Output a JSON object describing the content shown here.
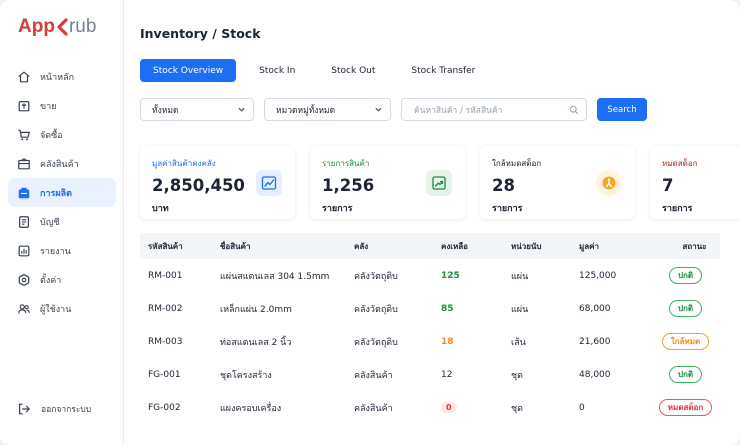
{
  "brand": {
    "part1": "App",
    "part2": "rub"
  },
  "sidebar": {
    "items": [
      {
        "label": "หน้าหลัก",
        "icon": "home-icon"
      },
      {
        "label": "ขาย",
        "icon": "sale-icon"
      },
      {
        "label": "จัดซื้อ",
        "icon": "cart-icon"
      },
      {
        "label": "คลังสินค้า",
        "icon": "warehouse-icon"
      },
      {
        "label": "การผลิต",
        "icon": "factory-icon",
        "active": true
      },
      {
        "label": "บัญชี",
        "icon": "ledger-icon"
      },
      {
        "label": "รายงาน",
        "icon": "report-icon"
      },
      {
        "label": "ตั้งค่า",
        "icon": "gear-icon"
      },
      {
        "label": "ผู้ใช้งาน",
        "icon": "users-icon"
      }
    ],
    "logout": "ออกจากระบบ"
  },
  "page": {
    "title": "Inventory / Stock"
  },
  "tabs": [
    {
      "label": "Stock Overview",
      "active": true
    },
    {
      "label": "Stock In"
    },
    {
      "label": "Stock Out"
    },
    {
      "label": "Stock Transfer"
    }
  ],
  "filters": {
    "all": "ทั้งหมด",
    "category": "หมวดหมู่ทั้งหมด",
    "search_placeholder": "ค้นหาสินค้า / รหัสสินค้า",
    "search_button": "Search"
  },
  "cards": [
    {
      "label": "มูลค่าสินค้าคงคลัง",
      "value": "2,850,450",
      "unit": "บาท",
      "label_color": "#1c6ef2",
      "icon": "chart-trend-icon"
    },
    {
      "label": "รายการสินค้า",
      "value": "1,256",
      "unit": "รายการ",
      "label_color": "#1b8a3f",
      "icon": "growth-icon"
    },
    {
      "label": "ใกล้หมดสต็อก",
      "value": "28",
      "unit": "รายการ",
      "label_color": "#1c2333",
      "icon": "warning-icon"
    },
    {
      "label": "หมดสต็อก",
      "value": "7",
      "unit": "รายการ",
      "label_color": "#b3261e",
      "icon": ""
    }
  ],
  "table": {
    "headers": [
      "รหัสสินค้า",
      "ชื่อสินค้า",
      "คลัง",
      "คงเหลือ",
      "หน่วยนับ",
      "มูลค่า",
      "สถานะ"
    ],
    "rows": [
      {
        "code": "RM-001",
        "name": "แผ่นสแตนเลส 304 1.5mm",
        "warehouse": "คลังวัตถุดิบ",
        "qty": "125",
        "unit": "แผ่น",
        "value": "125,000",
        "status": "ปกติ",
        "qty_style": "green",
        "status_style": "ok"
      },
      {
        "code": "RM-002",
        "name": "เหล็กแผ่น 2.0mm",
        "warehouse": "คลังวัตถุดิบ",
        "qty": "85",
        "unit": "แผ่น",
        "value": "68,000",
        "status": "ปกติ",
        "qty_style": "green",
        "status_style": "ok"
      },
      {
        "code": "RM-003",
        "name": "ท่อสแตนเลส 2 นิ้ว",
        "warehouse": "คลังวัตถุดิบ",
        "qty": "18",
        "unit": "เส้น",
        "value": "21,600",
        "status": "ใกล้หมด",
        "qty_style": "orange",
        "status_style": "low"
      },
      {
        "code": "FG-001",
        "name": "ชุดโครงสร้าง",
        "warehouse": "คลังสินค้า",
        "qty": "12",
        "unit": "ชุด",
        "value": "48,000",
        "status": "ปกติ",
        "qty_style": "plain",
        "status_style": "ok"
      },
      {
        "code": "FG-002",
        "name": "แผงครอบเครื่อง",
        "warehouse": "คลังสินค้า",
        "qty": "0",
        "unit": "ชุด",
        "value": "0",
        "status": "หมดสต็อก",
        "qty_style": "red",
        "status_style": "out"
      }
    ]
  }
}
